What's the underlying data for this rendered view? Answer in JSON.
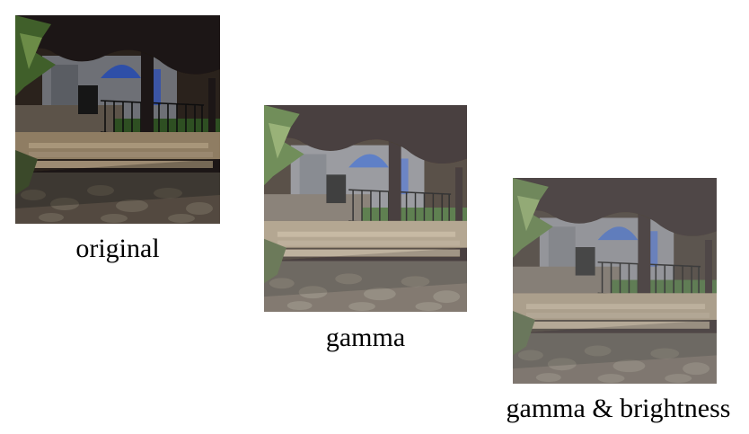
{
  "figure": {
    "panels": [
      {
        "caption": "original",
        "filter": "none"
      },
      {
        "caption": "gamma",
        "filter": "gamma"
      },
      {
        "caption": "gamma & brightness",
        "filter": "gamma-brightness"
      }
    ]
  },
  "colors": {
    "background": "#ffffff",
    "caption_text": "#000000",
    "foliage_dark": "#1a1410",
    "building_wall": "#8a8c92",
    "window_blue": "#2f4fa8",
    "stone_steps": "#b9a68a",
    "pavement": "#6b6256",
    "fence": "#1b1b1b",
    "grass": "#3f6b2e"
  }
}
